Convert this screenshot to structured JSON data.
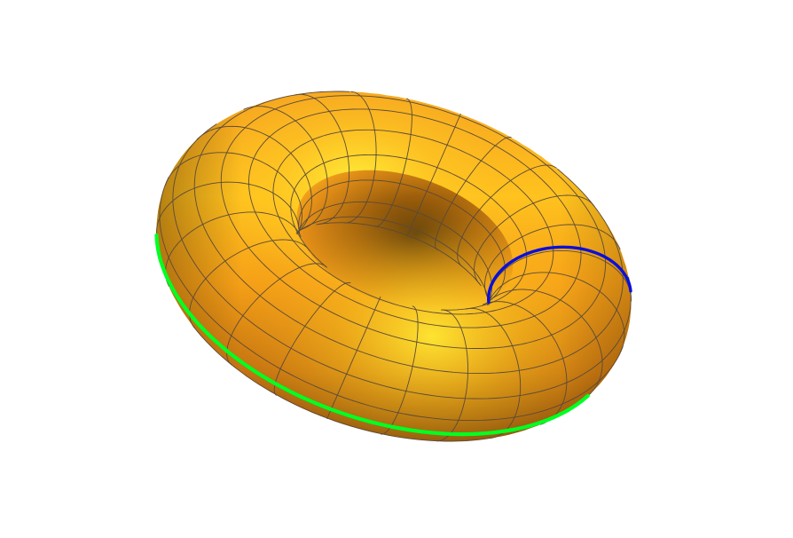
{
  "figure": {
    "subject": "torus",
    "surface_color": "#f2a11a",
    "highlight_color": "#ffe830",
    "shadow_color": "#6a3c05",
    "mesh_line_color": "#5a4a3a",
    "curves": [
      {
        "id": "longitude",
        "color": "#00ff22"
      },
      {
        "id": "meridian",
        "color": "#0a10d8"
      }
    ]
  }
}
